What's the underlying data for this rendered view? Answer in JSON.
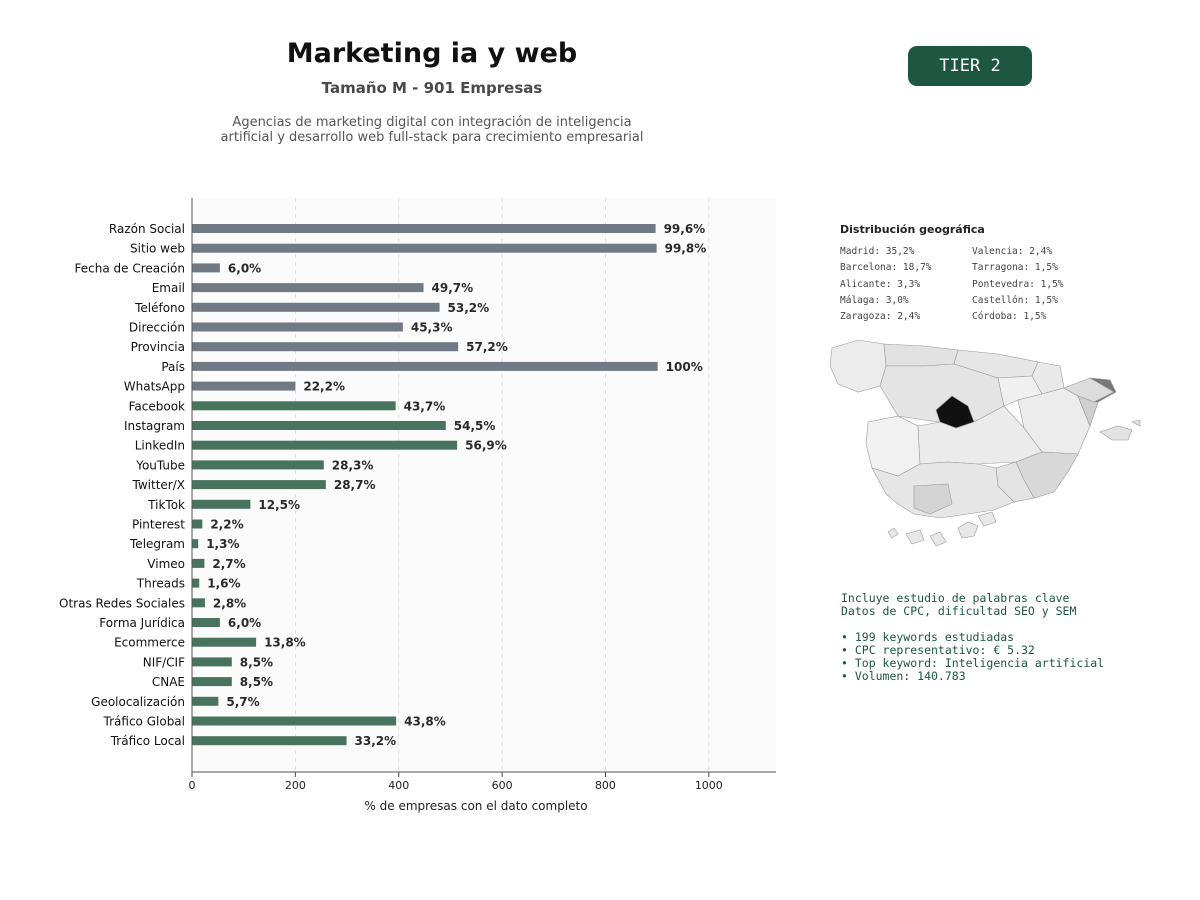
{
  "header": {
    "title": "Marketing ia y web",
    "subtitle": "Tamaño M - 901 Empresas",
    "description_line1": "Agencias de marketing digital con integración de inteligencia",
    "description_line2": "artificial y desarrollo web full-stack para crecimiento empresarial",
    "tier": "TIER 2"
  },
  "colors": {
    "basic_bar": "#6f7a84",
    "social_bar": "#47735f",
    "accent": "#1d5641",
    "map_madrid": "#111111",
    "map_barcelona": "#777777"
  },
  "chart_data": {
    "type": "bar",
    "orientation": "horizontal",
    "xlabel": "% de empresas con el dato completo",
    "ylabel": "",
    "title": "",
    "xlim": [
      0,
      1130
    ],
    "xticks": [
      0,
      200,
      400,
      600,
      800,
      1000
    ],
    "grid": "vertical dashed",
    "categories": [
      "Razón Social",
      "Sitio web",
      "Fecha de Creación",
      "Email",
      "Teléfono",
      "Dirección",
      "Provincia",
      "País",
      "WhatsApp",
      "Facebook",
      "Instagram",
      "LinkedIn",
      "YouTube",
      "Twitter/X",
      "TikTok",
      "Pinterest",
      "Telegram",
      "Vimeo",
      "Threads",
      "Otras Redes Sociales",
      "Forma Jurídica",
      "Ecommerce",
      "NIF/CIF",
      "CNAE",
      "Geolocalización",
      "Tráfico Global",
      "Tráfico Local"
    ],
    "values": [
      897,
      899,
      54,
      448,
      479,
      408,
      515,
      901,
      200,
      394,
      491,
      513,
      255,
      259,
      113,
      20,
      12,
      24,
      14,
      25,
      54,
      124,
      77,
      77,
      51,
      395,
      299
    ],
    "data_labels": [
      "99,6%",
      "99,8%",
      "6,0%",
      "49,7%",
      "53,2%",
      "45,3%",
      "57,2%",
      "100%",
      "22,2%",
      "43,7%",
      "54,5%",
      "56,9%",
      "28,3%",
      "28,7%",
      "12,5%",
      "2,2%",
      "1,3%",
      "2,7%",
      "1,6%",
      "2,8%",
      "6,0%",
      "13,8%",
      "8,5%",
      "8,5%",
      "5,7%",
      "43,8%",
      "33,2%"
    ],
    "bar_group": [
      "basic",
      "basic",
      "basic",
      "basic",
      "basic",
      "basic",
      "basic",
      "basic",
      "basic",
      "social",
      "social",
      "social",
      "social",
      "social",
      "social",
      "social",
      "social",
      "social",
      "social",
      "social",
      "social",
      "social",
      "social",
      "social",
      "social",
      "social",
      "social"
    ]
  },
  "geo": {
    "title": "Distribución geográfica",
    "items": [
      "Madrid: 35,2%",
      "Valencia: 2,4%",
      "Barcelona: 18,7%",
      "Tarragona: 1,5%",
      "Alicante: 3,3%",
      "Pontevedra: 1,5%",
      "Málaga: 3,0%",
      "Castellón: 1,5%",
      "Zaragoza: 2,4%",
      "Córdoba: 1,5%"
    ]
  },
  "keywords": {
    "line1": "Incluye estudio de palabras clave",
    "line2": "Datos de CPC, dificultad SEO y SEM",
    "bullets": [
      "• 199 keywords estudiadas",
      "• CPC representativo: € 5.32",
      "• Top keyword: Inteligencia artificial",
      "• Volumen: 140.783"
    ]
  }
}
